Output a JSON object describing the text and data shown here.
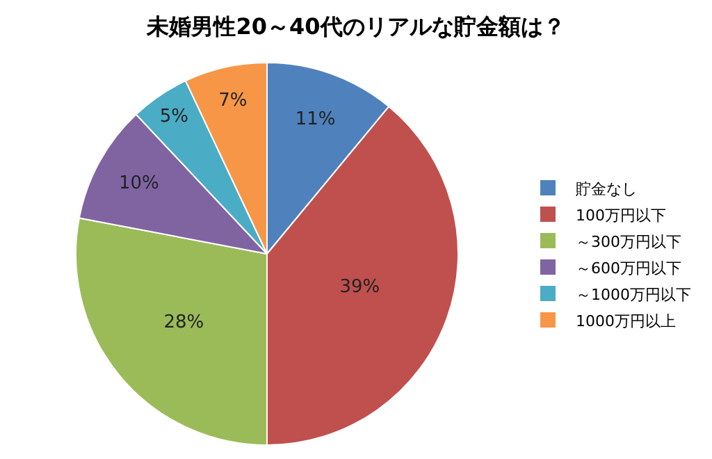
{
  "chart_data": {
    "type": "pie",
    "title": "未婚男性20～40代のリアルな貯金額は？",
    "categories": [
      "貯金なし",
      "100万円以下",
      "～300万円以下",
      "～600万円以下",
      "～1000万円以下",
      "1000万円以上"
    ],
    "values": [
      11,
      39,
      28,
      10,
      5,
      7
    ],
    "value_labels": [
      "11%",
      "39%",
      "28%",
      "10%",
      "5%",
      "7%"
    ],
    "colors": [
      "#4f81bd",
      "#c0504d",
      "#9bbb59",
      "#8064a2",
      "#4bacc6",
      "#f79646"
    ],
    "legend": "right"
  }
}
